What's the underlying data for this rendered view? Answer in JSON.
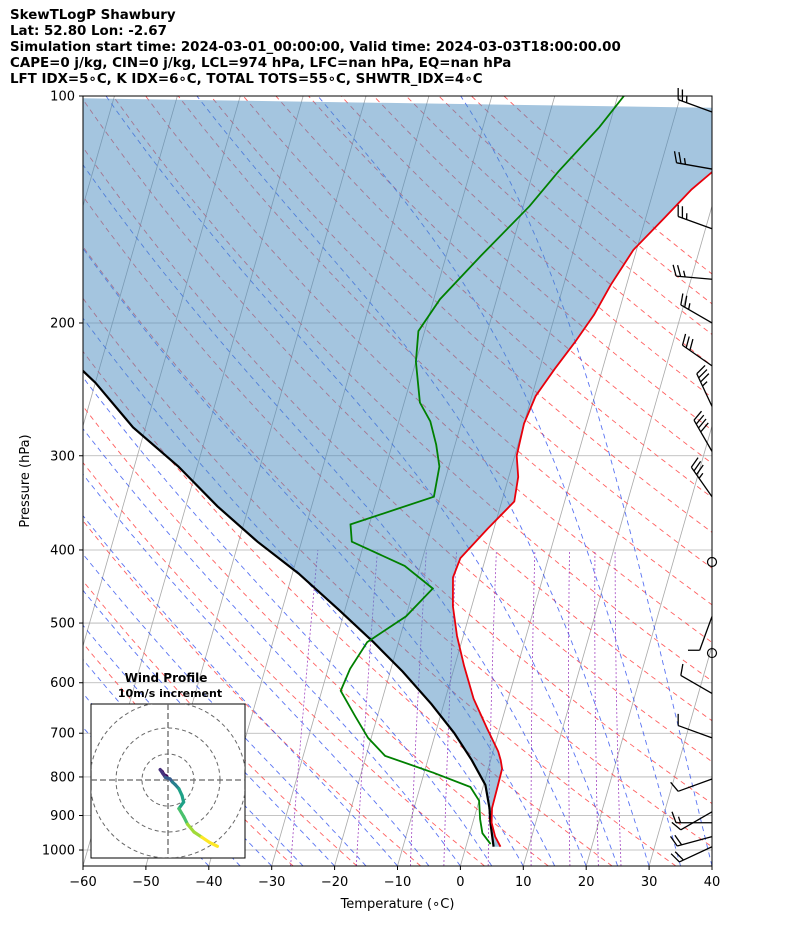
{
  "header": {
    "line1": "SkewTLogP Shawbury",
    "line2": "Lat: 52.80   Lon: -2.67",
    "line3": "Simulation start time: 2024-03-01_00:00:00, Valid time: 2024-03-03T18:00:00.00",
    "line4": "CAPE=0 j/kg, CIN=0 j/kg, LCL=974 hPa, LFC=nan hPa, EQ=nan hPa",
    "line5": "LFT IDX=5∘C, K IDX=6∘C, TOTAL TOTS=55∘C, SHWTR_IDX=4∘C"
  },
  "colors": {
    "temperature": "#e8000b",
    "dewpoint": "#008000",
    "parcel": "#000000",
    "cape_fill": "#4a8cc0",
    "dry_adiabat": "#ff4444",
    "moist_adiabat": "#2244ee",
    "mixing_ratio": "#9933bb",
    "isotherm": "#888888"
  },
  "chart_data": [
    {
      "type": "line",
      "title": "",
      "xlabel": "Temperature (∘C)",
      "ylabel": "Pressure (hPa)",
      "xlim": [
        -60,
        40
      ],
      "ylim": [
        1050,
        100
      ],
      "yscale": "log",
      "skew": 35,
      "x_ticks": [
        "−60",
        "−50",
        "−40",
        "−30",
        "−20",
        "−10",
        "0",
        "10",
        "20",
        "30",
        "40"
      ],
      "x_tick_values": [
        -60,
        -50,
        -40,
        -30,
        -20,
        -10,
        0,
        10,
        20,
        30,
        40
      ],
      "y_ticks": [
        "1000",
        "900",
        "800",
        "700",
        "600",
        "500",
        "400",
        "300",
        "200",
        "100"
      ],
      "y_tick_values": [
        1000,
        900,
        800,
        700,
        600,
        500,
        400,
        300,
        200,
        100
      ],
      "grid": true,
      "series": [
        {
          "role": "temperature",
          "points": [
            [
              5.5,
              990
            ],
            [
              4.2,
              960
            ],
            [
              3.0,
              920
            ],
            [
              2.4,
              880
            ],
            [
              2.3,
              820
            ],
            [
              2.2,
              780
            ],
            [
              1.6,
              760
            ],
            [
              0.8,
              740
            ],
            [
              -2.0,
              690
            ],
            [
              -5.5,
              630
            ],
            [
              -8.5,
              570
            ],
            [
              -11.0,
              520
            ],
            [
              -13.0,
              475
            ],
            [
              -14.3,
              435
            ],
            [
              -14.0,
              410
            ],
            [
              -11.0,
              375
            ],
            [
              -8.0,
              345
            ],
            [
              -8.5,
              320
            ],
            [
              -9.7,
              300
            ],
            [
              -10.0,
              272
            ],
            [
              -9.4,
              250
            ],
            [
              -7.6,
              230
            ],
            [
              -5.6,
              212
            ],
            [
              -3.8,
              195
            ],
            [
              -2.5,
              178
            ],
            [
              -0.5,
              160
            ],
            [
              3.0,
              145
            ],
            [
              6.0,
              133
            ],
            [
              10.8,
              120
            ],
            [
              14.0,
              110
            ],
            [
              16.0,
              104
            ]
          ]
        },
        {
          "role": "dewpoint",
          "points": [
            [
              3.8,
              982
            ],
            [
              2.0,
              950
            ],
            [
              1.0,
              910
            ],
            [
              0.0,
              860
            ],
            [
              -2.0,
              825
            ],
            [
              -8.5,
              790
            ],
            [
              -17.0,
              750
            ],
            [
              -20.5,
              710
            ],
            [
              -23.5,
              665
            ],
            [
              -27.0,
              615
            ],
            [
              -26.5,
              575
            ],
            [
              -25.0,
              530
            ],
            [
              -20.0,
              490
            ],
            [
              -17.0,
              450
            ],
            [
              -22.5,
              420
            ],
            [
              -32.0,
              390
            ],
            [
              -33.0,
              370
            ],
            [
              -21.0,
              340
            ],
            [
              -21.5,
              310
            ],
            [
              -23.0,
              290
            ],
            [
              -25.0,
              270
            ],
            [
              -27.5,
              255
            ],
            [
              -30.0,
              225
            ],
            [
              -31.0,
              205
            ],
            [
              -29.0,
              186
            ],
            [
              -24.5,
              163
            ],
            [
              -19.0,
              140
            ],
            [
              -16.0,
              126
            ],
            [
              -11.5,
              110
            ],
            [
              -9.0,
              100
            ]
          ]
        },
        {
          "role": "parcel",
          "points": [
            [
              4.4,
              990
            ],
            [
              3.5,
              950
            ],
            [
              2.8,
              920
            ],
            [
              2.0,
              880
            ],
            [
              0.3,
              820
            ],
            [
              -3.0,
              760
            ],
            [
              -7.0,
              700
            ],
            [
              -12.0,
              640
            ],
            [
              -18.0,
              580
            ],
            [
              -24.0,
              530
            ],
            [
              -31.0,
              480
            ],
            [
              -39.0,
              430
            ],
            [
              -47.0,
              390
            ],
            [
              -55.0,
              350
            ],
            [
              -63.0,
              310
            ],
            [
              -72.0,
              275
            ],
            [
              -80.0,
              240
            ],
            [
              -90.0,
              208
            ],
            [
              -100.0,
              175
            ],
            [
              -108.0,
              150
            ],
            [
              -115.0,
              125
            ],
            [
              -118.0,
              110
            ],
            [
              -119.0,
              100
            ]
          ]
        }
      ],
      "wind_barbs": [
        {
          "pressure": 105,
          "direction": 290,
          "speed_kt": 25
        },
        {
          "pressure": 125,
          "direction": 280,
          "speed_kt": 25
        },
        {
          "pressure": 150,
          "direction": 290,
          "speed_kt": 25
        },
        {
          "pressure": 175,
          "direction": 275,
          "speed_kt": 25
        },
        {
          "pressure": 200,
          "direction": 300,
          "speed_kt": 25
        },
        {
          "pressure": 228,
          "direction": 305,
          "speed_kt": 30
        },
        {
          "pressure": 258,
          "direction": 335,
          "speed_kt": 35
        },
        {
          "pressure": 296,
          "direction": 330,
          "speed_kt": 40
        },
        {
          "pressure": 340,
          "direction": 325,
          "speed_kt": 35
        },
        {
          "pressure": 415,
          "direction": 0,
          "speed_kt": 0
        },
        {
          "pressure": 490,
          "direction": 200,
          "speed_kt": 10
        },
        {
          "pressure": 548,
          "direction": 0,
          "speed_kt": 0
        },
        {
          "pressure": 620,
          "direction": 300,
          "speed_kt": 10
        },
        {
          "pressure": 710,
          "direction": 290,
          "speed_kt": 10
        },
        {
          "pressure": 805,
          "direction": 250,
          "speed_kt": 10
        },
        {
          "pressure": 890,
          "direction": 240,
          "speed_kt": 10
        },
        {
          "pressure": 920,
          "direction": 270,
          "speed_kt": 15
        },
        {
          "pressure": 960,
          "direction": 255,
          "speed_kt": 20
        },
        {
          "pressure": 990,
          "direction": 245,
          "speed_kt": 20
        }
      ]
    },
    {
      "type": "line",
      "title": "Wind Profile",
      "subtitle": "10m/s increment",
      "rings_ms": [
        10,
        20,
        30
      ],
      "trace_uv": [
        [
          -0.5,
          1.5
        ],
        [
          -1.5,
          2.0
        ],
        [
          -2.2,
          3.2
        ],
        [
          -3.0,
          4.0
        ],
        [
          -2.0,
          2.5
        ],
        [
          -1.0,
          1.0
        ],
        [
          0.8,
          0.4
        ],
        [
          1.7,
          -0.8
        ],
        [
          2.8,
          -1.8
        ],
        [
          4.2,
          -3.4
        ],
        [
          5.4,
          -6.0
        ],
        [
          6.0,
          -8.5
        ],
        [
          4.2,
          -11.0
        ],
        [
          6.0,
          -14.0
        ],
        [
          7.5,
          -17.0
        ],
        [
          10.0,
          -20.0
        ],
        [
          13.0,
          -22.0
        ],
        [
          16.0,
          -24.0
        ],
        [
          19.0,
          -25.5
        ]
      ]
    }
  ]
}
